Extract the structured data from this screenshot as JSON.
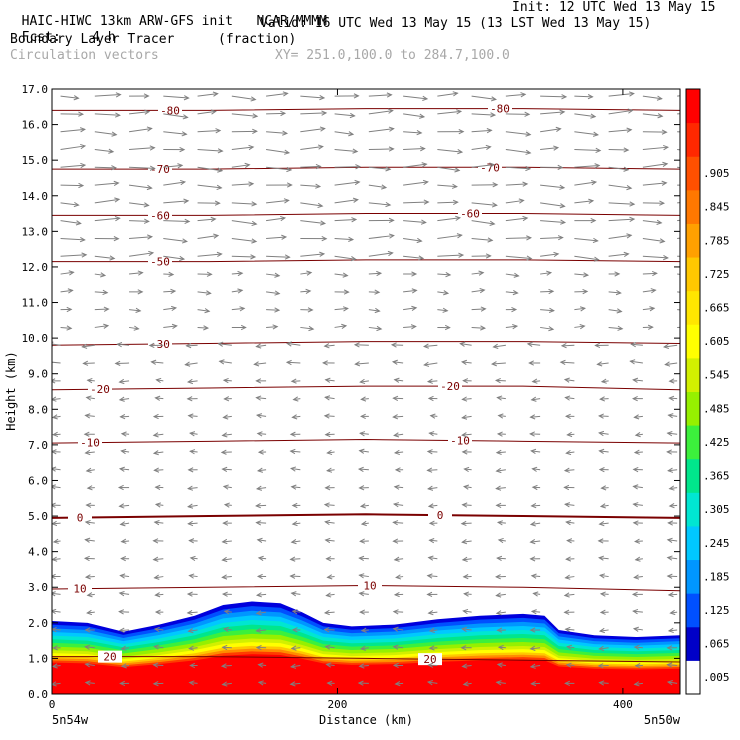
{
  "header": {
    "title": "HAIC-HIWC 13km ARW-GFS init",
    "org": "NCAR/MMMM",
    "init": "Init: 12 UTC Wed 13 May 15",
    "fcst_label": "Fcst:",
    "fcst_value": "4 h",
    "valid": "Valid: 16 UTC Wed 13 May 15 (13 LST Wed 13 May 15)",
    "field_name": "Boundary Layer Tracer",
    "field_units": "(fraction)",
    "vector_label": "Circulation vectors",
    "xy_label": "XY= 251.0,100.0 to 284.7,100.0"
  },
  "colors": {
    "contour": "#7a0000",
    "vector": "#808080",
    "scale": [
      "#ffffff",
      "#0000c8",
      "#0050ff",
      "#0096ff",
      "#00c8ff",
      "#00e6d2",
      "#00e68c",
      "#3cf03c",
      "#96f000",
      "#d2f000",
      "#ffff00",
      "#ffe600",
      "#ffc800",
      "#ffa000",
      "#ff7800",
      "#ff5000",
      "#ff2800",
      "#ff0000"
    ]
  },
  "chart_data": {
    "type": "heatmap",
    "title": "Boundary Layer Tracer",
    "units": "(fraction)",
    "xlabel": "Distance (km)",
    "ylabel": "Height (km)",
    "xlim": [
      0,
      440
    ],
    "ylim": [
      0,
      17
    ],
    "x_ticks": [
      0,
      200,
      400
    ],
    "y_ticks": [
      "0.0",
      "1.0",
      "2.0",
      "3.0",
      "4.0",
      "5.0",
      "6.0",
      "7.0",
      "8.0",
      "9.0",
      "10.0",
      "11.0",
      "12.0",
      "13.0",
      "14.0",
      "15.0",
      "16.0",
      "17.0"
    ],
    "x_endpoints": {
      "left": "5n54w",
      "right": "5n50w"
    },
    "colorbar_labels": [
      ".005",
      ".065",
      ".125",
      ".185",
      ".245",
      ".305",
      ".365",
      ".425",
      ".485",
      ".545",
      ".605",
      ".665",
      ".725",
      ".785",
      ".845",
      ".905"
    ],
    "bl_top_km": [
      [
        0,
        2.05
      ],
      [
        25,
        2.0
      ],
      [
        50,
        1.75
      ],
      [
        75,
        1.95
      ],
      [
        100,
        2.2
      ],
      [
        120,
        2.5
      ],
      [
        140,
        2.6
      ],
      [
        160,
        2.55
      ],
      [
        175,
        2.3
      ],
      [
        190,
        2.0
      ],
      [
        210,
        1.9
      ],
      [
        240,
        1.95
      ],
      [
        270,
        2.1
      ],
      [
        300,
        2.2
      ],
      [
        330,
        2.25
      ],
      [
        345,
        2.2
      ],
      [
        355,
        1.8
      ],
      [
        380,
        1.65
      ],
      [
        410,
        1.6
      ],
      [
        440,
        1.65
      ]
    ],
    "temperature_contours_C": [
      {
        "value": 20,
        "label": "20",
        "heights_km": [
          1.05,
          1.05,
          1.0,
          0.95,
          0.9
        ],
        "label_x": [
          110,
          430
        ]
      },
      {
        "value": 10,
        "label": "10",
        "heights_km": [
          2.95,
          3.0,
          3.05,
          3.0,
          2.9
        ],
        "label_x": [
          80,
          370
        ]
      },
      {
        "value": 0,
        "label": "0",
        "heights_km": [
          4.95,
          5.0,
          5.05,
          5.0,
          4.95
        ],
        "label_x": [
          80,
          440
        ]
      },
      {
        "value": -10,
        "label": "-10",
        "heights_km": [
          7.05,
          7.1,
          7.15,
          7.1,
          7.05
        ],
        "label_x": [
          90,
          460
        ]
      },
      {
        "value": -20,
        "label": "-20",
        "heights_km": [
          8.55,
          8.6,
          8.65,
          8.65,
          8.55
        ],
        "label_x": [
          100,
          450
        ]
      },
      {
        "value": -30,
        "label": "-30",
        "heights_km": [
          9.8,
          9.85,
          9.9,
          9.9,
          9.85
        ],
        "label_x": [
          160
        ]
      },
      {
        "value": -50,
        "label": "-50",
        "heights_km": [
          12.15,
          12.15,
          12.2,
          12.2,
          12.15
        ],
        "label_x": [
          160
        ]
      },
      {
        "value": -60,
        "label": "-60",
        "heights_km": [
          13.45,
          13.45,
          13.5,
          13.5,
          13.45
        ],
        "label_x": [
          160,
          470
        ]
      },
      {
        "value": -70,
        "label": "-70",
        "heights_km": [
          14.75,
          14.75,
          14.8,
          14.8,
          14.75
        ],
        "label_x": [
          160,
          490
        ]
      },
      {
        "value": -80,
        "label": "-80",
        "heights_km": [
          16.4,
          16.4,
          16.45,
          16.45,
          16.4
        ],
        "label_x": [
          170,
          500
        ]
      }
    ]
  }
}
